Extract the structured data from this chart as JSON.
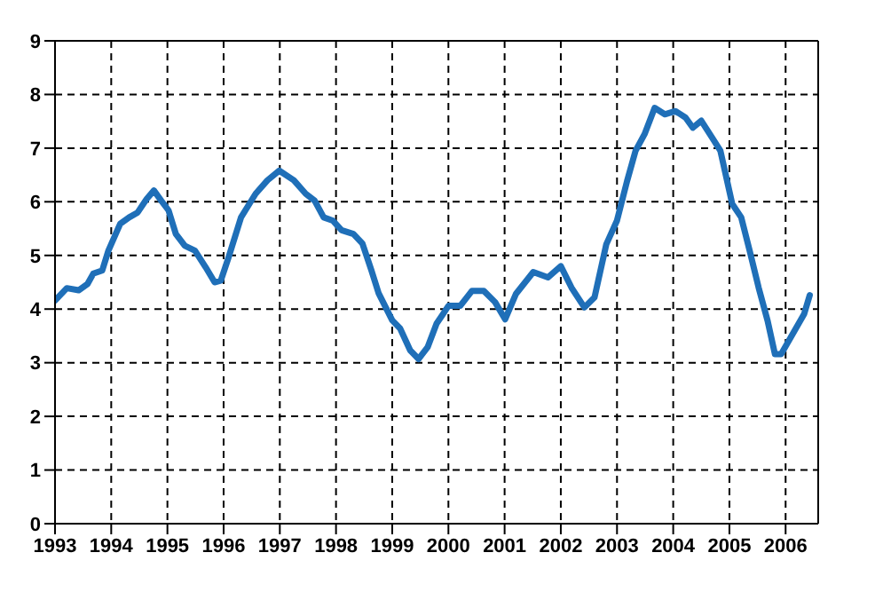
{
  "chart_data": {
    "type": "line",
    "xlim": [
      1993,
      2006.58
    ],
    "xticks": [
      1993,
      1994,
      1995,
      1996,
      1997,
      1998,
      1999,
      2000,
      2001,
      2002,
      2003,
      2004,
      2005,
      2006
    ],
    "ylim": [
      0,
      9
    ],
    "yticks": [
      0,
      1,
      2,
      3,
      4,
      5,
      6,
      7,
      8,
      9
    ],
    "grid": true,
    "legend": false,
    "marker": "none",
    "line_style": "solid",
    "x": [
      1993.0,
      1993.21,
      1993.42,
      1993.58,
      1993.68,
      1993.84,
      1993.95,
      1994.16,
      1994.32,
      1994.47,
      1994.63,
      1994.76,
      1994.89,
      1995.02,
      1995.15,
      1995.31,
      1995.49,
      1995.68,
      1995.84,
      1995.95,
      1996.09,
      1996.31,
      1996.57,
      1996.78,
      1996.99,
      1997.25,
      1997.46,
      1997.62,
      1997.78,
      1997.94,
      1998.1,
      1998.31,
      1998.47,
      1998.63,
      1998.76,
      1999.0,
      1999.14,
      1999.32,
      1999.47,
      1999.63,
      1999.79,
      1999.9,
      2000.0,
      2000.21,
      2000.42,
      2000.63,
      2000.83,
      2001.01,
      2001.2,
      2001.51,
      2001.77,
      2002.0,
      2002.19,
      2002.42,
      2002.6,
      2002.81,
      2003.0,
      2003.18,
      2003.33,
      2003.49,
      2003.67,
      2003.85,
      2004.04,
      2004.22,
      2004.35,
      2004.5,
      2004.69,
      2004.84,
      2005.05,
      2005.21,
      2005.36,
      2005.52,
      2005.68,
      2005.81,
      2005.92,
      2006.09,
      2006.33,
      2006.43
    ],
    "series": [
      {
        "color": "#1f6fb8",
        "values": [
          4.16,
          4.39,
          4.35,
          4.47,
          4.66,
          4.72,
          5.09,
          5.59,
          5.71,
          5.8,
          6.05,
          6.21,
          6.02,
          5.84,
          5.4,
          5.18,
          5.09,
          4.78,
          4.5,
          4.53,
          4.97,
          5.71,
          6.15,
          6.4,
          6.58,
          6.4,
          6.15,
          6.02,
          5.71,
          5.65,
          5.47,
          5.4,
          5.22,
          4.72,
          4.29,
          3.79,
          3.64,
          3.23,
          3.07,
          3.29,
          3.73,
          3.9,
          4.06,
          4.06,
          4.34,
          4.34,
          4.13,
          3.81,
          4.28,
          4.69,
          4.59,
          4.8,
          4.4,
          4.03,
          4.22,
          5.21,
          5.65,
          6.39,
          6.95,
          7.26,
          7.75,
          7.63,
          7.69,
          7.57,
          7.38,
          7.51,
          7.2,
          6.95,
          5.96,
          5.71,
          5.09,
          4.4,
          3.78,
          3.16,
          3.16,
          3.47,
          3.91,
          4.26
        ]
      }
    ]
  }
}
